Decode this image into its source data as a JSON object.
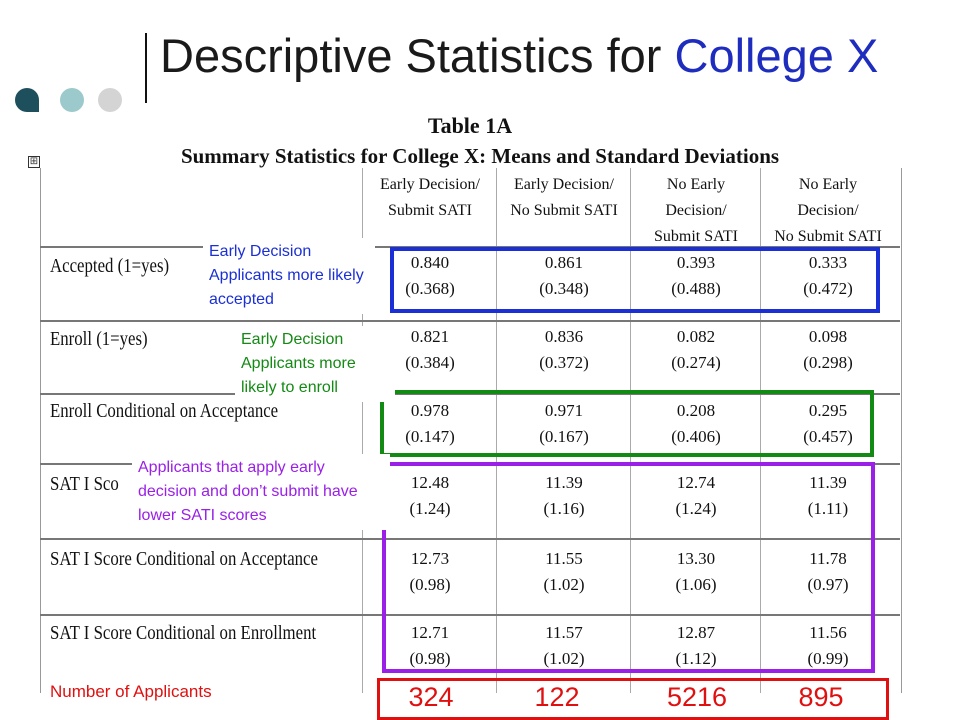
{
  "slide": {
    "title_main": "Descriptive Statistics for",
    "title_accent": "College X"
  },
  "table": {
    "title": "Table 1A",
    "subtitle": "Summary Statistics for College X: Means and Standard Deviations",
    "expand_glyph": "⊞",
    "columns": [
      "Early Decision/\nSubmit SATI",
      "Early Decision/\nNo Submit SATI",
      "No Early\nDecision/\nSubmit SATI",
      "No Early\nDecision/\nNo Submit SATI"
    ],
    "rows": [
      {
        "label": "Accepted (1=yes)",
        "means": [
          "0.840",
          "0.861",
          "0.393",
          "0.333"
        ],
        "sds": [
          "(0.368)",
          "(0.348)",
          "(0.488)",
          "(0.472)"
        ]
      },
      {
        "label": "Enroll (1=yes)",
        "means": [
          "0.821",
          "0.836",
          "0.082",
          "0.098"
        ],
        "sds": [
          "(0.384)",
          "(0.372)",
          "(0.274)",
          "(0.298)"
        ]
      },
      {
        "label": "Enroll Conditional on Acceptance",
        "means": [
          "0.978",
          "0.971",
          "0.208",
          "0.295"
        ],
        "sds": [
          "(0.147)",
          "(0.167)",
          "(0.406)",
          "(0.457)"
        ]
      },
      {
        "label": "SAT I Sco",
        "means": [
          "12.48",
          "11.39",
          "12.74",
          "11.39"
        ],
        "sds": [
          "(1.24)",
          "(1.16)",
          "(1.24)",
          "(1.11)"
        ]
      },
      {
        "label": "SAT I Score Conditional on Acceptance",
        "means": [
          "12.73",
          "11.55",
          "13.30",
          "11.78"
        ],
        "sds": [
          "(0.98)",
          "(1.02)",
          "(1.06)",
          "(0.97)"
        ]
      },
      {
        "label": "SAT I Score Conditional on Enrollment",
        "means": [
          "12.71",
          "11.57",
          "12.87",
          "11.56"
        ],
        "sds": [
          "(0.98)",
          "(1.02)",
          "(1.12)",
          "(0.99)"
        ]
      }
    ]
  },
  "annotations": {
    "accepted_note": "Early Decision Applicants more likely accepted",
    "enroll_note": "Early Decision Applicants more likely to enroll",
    "sat_note": "Applicants that apply early decision and don’t submit have lower SATI scores",
    "applicants_label": "Number of Applicants",
    "applicant_counts": [
      "324",
      "122",
      "5216",
      "895"
    ]
  },
  "colors": {
    "title_accent": "#1f2dbf",
    "blue": "#1a2fd6",
    "green": "#138a13",
    "purple": "#9a20e8",
    "red": "#e01010"
  }
}
